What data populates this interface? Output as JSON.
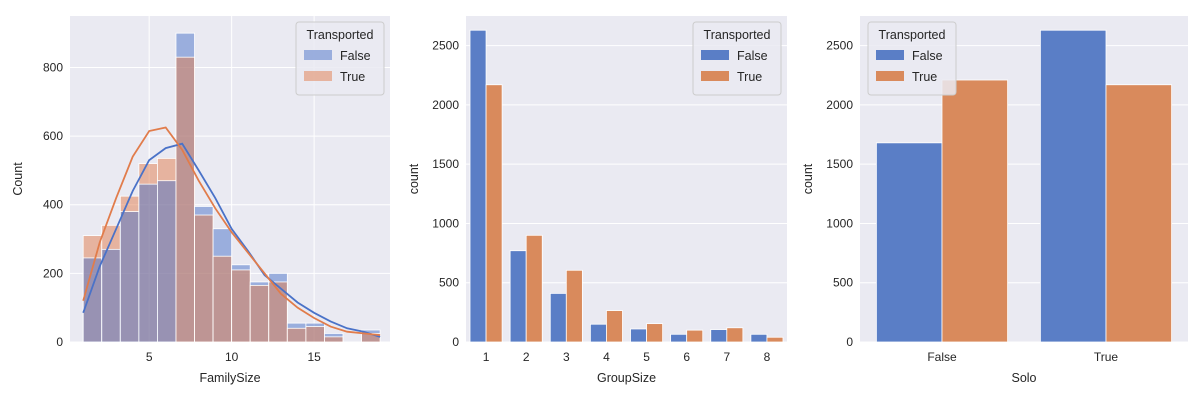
{
  "chart_data": [
    {
      "id": "family",
      "type": "histogram",
      "xlabel": "FamilySize",
      "ylabel": "Count",
      "xlim": [
        0.2,
        19.6
      ],
      "ylim": [
        0,
        950
      ],
      "xticks": [
        5,
        10,
        15
      ],
      "yticks": [
        0,
        200,
        400,
        600,
        800
      ],
      "grid": true,
      "legend": {
        "title": "Transported",
        "placement": "top-right"
      },
      "bins": {
        "start": 1,
        "width": 1.125,
        "count": 16
      },
      "series": [
        {
          "name": "False",
          "color": "#4a72c8",
          "values": [
            245,
            270,
            380,
            460,
            470,
            900,
            395,
            330,
            225,
            175,
            200,
            55,
            55,
            25,
            0,
            35
          ],
          "kde": [
            [
              1,
              85
            ],
            [
              2,
              220
            ],
            [
              3,
              330
            ],
            [
              4,
              440
            ],
            [
              5,
              530
            ],
            [
              6,
              565
            ],
            [
              7,
              578
            ],
            [
              8,
              500
            ],
            [
              9,
              420
            ],
            [
              10,
              330
            ],
            [
              11,
              265
            ],
            [
              12,
              195
            ],
            [
              13,
              155
            ],
            [
              14,
              115
            ],
            [
              15,
              85
            ],
            [
              16,
              60
            ],
            [
              17,
              40
            ],
            [
              18,
              30
            ],
            [
              19,
              15
            ]
          ]
        },
        {
          "name": "True",
          "color": "#e17c4b",
          "values": [
            310,
            340,
            425,
            520,
            535,
            830,
            370,
            250,
            210,
            165,
            175,
            40,
            45,
            15,
            0,
            25
          ],
          "kde": [
            [
              1,
              120
            ],
            [
              2,
              290
            ],
            [
              3,
              420
            ],
            [
              4,
              540
            ],
            [
              5,
              615
            ],
            [
              6,
              625
            ],
            [
              7,
              560
            ],
            [
              8,
              470
            ],
            [
              9,
              390
            ],
            [
              10,
              320
            ],
            [
              11,
              260
            ],
            [
              12,
              200
            ],
            [
              13,
              140
            ],
            [
              14,
              100
            ],
            [
              15,
              70
            ],
            [
              16,
              45
            ],
            [
              17,
              30
            ],
            [
              18,
              25
            ],
            [
              19,
              20
            ]
          ]
        }
      ]
    },
    {
      "id": "group",
      "type": "bar",
      "xlabel": "GroupSize",
      "ylabel": "count",
      "categories": [
        "1",
        "2",
        "3",
        "4",
        "5",
        "6",
        "7",
        "8"
      ],
      "ylim": [
        0,
        2750
      ],
      "yticks": [
        0,
        500,
        1000,
        1500,
        2000,
        2500
      ],
      "grid": true,
      "legend": {
        "title": "Transported",
        "placement": "top-right"
      },
      "series": [
        {
          "name": "False",
          "color": "#5a7ec6",
          "values": [
            2630,
            770,
            410,
            150,
            110,
            65,
            105,
            65
          ]
        },
        {
          "name": "True",
          "color": "#d98a5c",
          "values": [
            2170,
            900,
            605,
            265,
            155,
            100,
            120,
            40
          ]
        }
      ]
    },
    {
      "id": "solo",
      "type": "bar",
      "xlabel": "Solo",
      "ylabel": "count",
      "categories": [
        "False",
        "True"
      ],
      "ylim": [
        0,
        2750
      ],
      "yticks": [
        0,
        500,
        1000,
        1500,
        2000,
        2500
      ],
      "grid": true,
      "legend": {
        "title": "Transported",
        "placement": "top-left"
      },
      "series": [
        {
          "name": "False",
          "color": "#5a7ec6",
          "values": [
            1680,
            2630
          ]
        },
        {
          "name": "True",
          "color": "#d98a5c",
          "values": [
            2210,
            2170
          ]
        }
      ]
    }
  ]
}
